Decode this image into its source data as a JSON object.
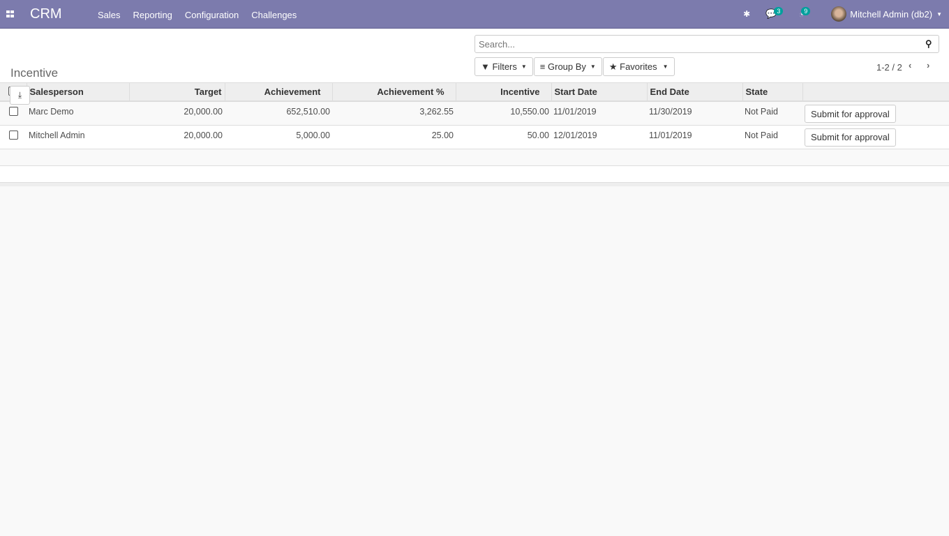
{
  "nav": {
    "brand": "CRM",
    "menu": [
      "Sales",
      "Reporting",
      "Configuration",
      "Challenges"
    ],
    "messages_count": "3",
    "activities_count": "9",
    "user": "Mitchell Admin (db2)"
  },
  "cp": {
    "title": "Incentive",
    "search_placeholder": "Search...",
    "filters": "Filters",
    "group_by": "Group By",
    "favorites": "Favorites",
    "pager": "1-2 / 2"
  },
  "table": {
    "headers": [
      "Salesperson",
      "Target",
      "Achievement",
      "Achievement %",
      "Incentive",
      "Start Date",
      "End Date",
      "State"
    ],
    "rows": [
      {
        "salesperson": "Marc Demo",
        "target": "20,000.00",
        "achievement": "652,510.00",
        "pct": "3,262.55",
        "incentive": "10,550.00",
        "start": "11/01/2019",
        "end": "11/30/2019",
        "state": "Not Paid",
        "action": "Submit for approval"
      },
      {
        "salesperson": "Mitchell Admin",
        "target": "20,000.00",
        "achievement": "5,000.00",
        "pct": "25.00",
        "incentive": "50.00",
        "start": "12/01/2019",
        "end": "11/01/2019",
        "state": "Not Paid",
        "action": "Submit for approval"
      }
    ]
  }
}
